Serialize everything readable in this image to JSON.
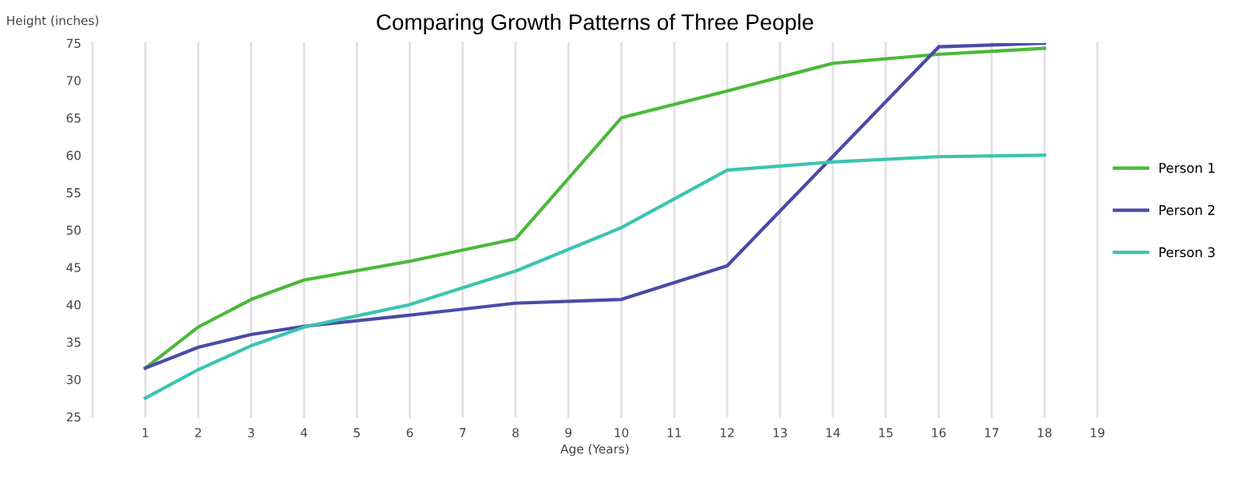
{
  "chart_data": {
    "type": "line",
    "title": "Comparing Growth Patterns of Three People",
    "xlabel": "Age (Years)",
    "ylabel": "Height (inches)",
    "series": [
      {
        "name": "Person 1",
        "color": "#4cb83a",
        "x": [
          1,
          2,
          3,
          4,
          6,
          8,
          10,
          12,
          14,
          16,
          18
        ],
        "values": [
          31.5,
          37,
          40.7,
          43.3,
          45.8,
          48.8,
          65,
          68.6,
          72.3,
          73.5,
          74.3
        ]
      },
      {
        "name": "Person 2",
        "color": "#4a4aa8",
        "x": [
          1,
          2,
          3,
          4,
          6,
          8,
          10,
          12,
          16,
          18
        ],
        "values": [
          31.5,
          34.3,
          36,
          37.1,
          38.6,
          40.2,
          40.7,
          45.2,
          74.5,
          75
        ]
      },
      {
        "name": "Person 3",
        "color": "#3cc4b0",
        "x": [
          1,
          2,
          3,
          4,
          5,
          6,
          8,
          10,
          12,
          14,
          16,
          18
        ],
        "values": [
          27.5,
          31.3,
          34.5,
          37,
          38.5,
          40,
          44.5,
          50.3,
          58,
          59.1,
          59.8,
          60
        ]
      }
    ],
    "xlim": [
      0,
      19
    ],
    "xticks": [
      {
        "value": 0,
        "label": null
      },
      1,
      2,
      3,
      4,
      5,
      6,
      7,
      8,
      9,
      10,
      11,
      12,
      13,
      14,
      15,
      16,
      17,
      18,
      19
    ],
    "ylim": [
      25,
      75
    ],
    "yticks": [
      25,
      30,
      35,
      40,
      45,
      50,
      55,
      60,
      65,
      70,
      75
    ],
    "grid": "x",
    "legend": "right",
    "marker": "none",
    "line_style": "solid"
  }
}
